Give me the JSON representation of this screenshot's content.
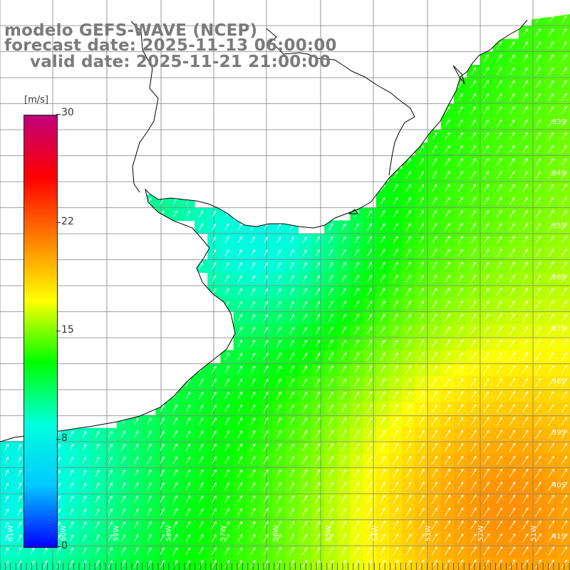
{
  "header": {
    "line1": "modelo GEFS-WAVE (NCEP)",
    "line2": "forecast date: 2025-11-13 06:00:00",
    "line3": "valid date: 2025-11-21 21:00:00"
  },
  "colorbar": {
    "units": "[m/s]",
    "min": 0,
    "max": 30,
    "ticks": [
      "30",
      "22",
      "15",
      "8",
      "0"
    ],
    "colors": [
      "#0000ff",
      "#00c8ff",
      "#00ffdc",
      "#00ff00",
      "#ffff00",
      "#ff8000",
      "#ff0000",
      "#c0007a"
    ]
  },
  "map": {
    "lat_labels": [
      "33S",
      "34S",
      "35S",
      "36S",
      "37S",
      "38S",
      "39S",
      "40S",
      "41S"
    ],
    "lon_labels": [
      "61W",
      "60W",
      "59W",
      "58W",
      "57W",
      "56W",
      "55W",
      "54W",
      "53W",
      "52W",
      "51W"
    ],
    "land_color": "#ffffff",
    "grid_color": "#808080",
    "coast_color": "#000000",
    "arrow_color": "#ffffff"
  }
}
